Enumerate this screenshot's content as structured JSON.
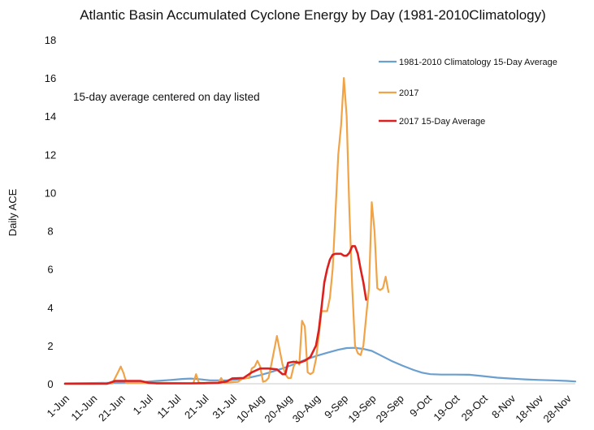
{
  "chart_data": {
    "type": "line",
    "title": "Atlantic Basin Accumulated Cyclone Energy by Day (1981-2010Climatology)",
    "annotation": "15-day average centered on day listed",
    "ylabel": "Daily ACE",
    "xlabel": "",
    "ylim": [
      0,
      18
    ],
    "yticks": [
      0,
      2,
      4,
      6,
      8,
      10,
      12,
      14,
      16,
      18
    ],
    "x_axis_start": "1-Jun",
    "x_axis_end_day": 183,
    "xticks": [
      {
        "day": 0,
        "label": "1-Jun"
      },
      {
        "day": 10,
        "label": "11-Jun"
      },
      {
        "day": 20,
        "label": "21-Jun"
      },
      {
        "day": 30,
        "label": "1-Jul"
      },
      {
        "day": 40,
        "label": "11-Jul"
      },
      {
        "day": 50,
        "label": "21-Jul"
      },
      {
        "day": 60,
        "label": "31-Jul"
      },
      {
        "day": 70,
        "label": "10-Aug"
      },
      {
        "day": 80,
        "label": "20-Aug"
      },
      {
        "day": 90,
        "label": "30-Aug"
      },
      {
        "day": 100,
        "label": "9-Sep"
      },
      {
        "day": 110,
        "label": "19-Sep"
      },
      {
        "day": 120,
        "label": "29-Sep"
      },
      {
        "day": 130,
        "label": "9-Oct"
      },
      {
        "day": 140,
        "label": "19-Oct"
      },
      {
        "day": 150,
        "label": "29-Oct"
      },
      {
        "day": 160,
        "label": "8-Nov"
      },
      {
        "day": 170,
        "label": "18-Nov"
      },
      {
        "day": 180,
        "label": "28-Nov"
      }
    ],
    "grid": false,
    "legend_position": "top-right",
    "series": [
      {
        "name": "1981-2010 Climatology 15-Day Average",
        "color": "#6a9fcf",
        "points": [
          [
            0,
            0.02
          ],
          [
            10,
            0.04
          ],
          [
            20,
            0.06
          ],
          [
            27,
            0.08
          ],
          [
            33,
            0.15
          ],
          [
            38,
            0.2
          ],
          [
            42,
            0.25
          ],
          [
            45,
            0.27
          ],
          [
            48,
            0.24
          ],
          [
            52,
            0.18
          ],
          [
            58,
            0.18
          ],
          [
            62,
            0.22
          ],
          [
            66,
            0.32
          ],
          [
            70,
            0.45
          ],
          [
            74,
            0.62
          ],
          [
            78,
            0.8
          ],
          [
            82,
            1.02
          ],
          [
            86,
            1.25
          ],
          [
            90,
            1.45
          ],
          [
            94,
            1.62
          ],
          [
            98,
            1.78
          ],
          [
            101,
            1.87
          ],
          [
            104,
            1.88
          ],
          [
            107,
            1.82
          ],
          [
            110,
            1.72
          ],
          [
            113,
            1.5
          ],
          [
            117,
            1.2
          ],
          [
            121,
            0.95
          ],
          [
            125,
            0.72
          ],
          [
            128,
            0.58
          ],
          [
            131,
            0.5
          ],
          [
            135,
            0.48
          ],
          [
            140,
            0.48
          ],
          [
            145,
            0.47
          ],
          [
            150,
            0.4
          ],
          [
            155,
            0.32
          ],
          [
            160,
            0.27
          ],
          [
            165,
            0.23
          ],
          [
            170,
            0.2
          ],
          [
            175,
            0.18
          ],
          [
            180,
            0.15
          ],
          [
            183,
            0.12
          ]
        ]
      },
      {
        "name": "2017",
        "color": "#f0a347",
        "points": [
          [
            0,
            0
          ],
          [
            10,
            0
          ],
          [
            17,
            0.02
          ],
          [
            19,
            0.6
          ],
          [
            20,
            0.9
          ],
          [
            21,
            0.55
          ],
          [
            22,
            0.05
          ],
          [
            35,
            0.05
          ],
          [
            46,
            0.02
          ],
          [
            47,
            0.5
          ],
          [
            48,
            0.05
          ],
          [
            55,
            0.05
          ],
          [
            56,
            0.3
          ],
          [
            57,
            0.05
          ],
          [
            62,
            0.1
          ],
          [
            64,
            0.3
          ],
          [
            66,
            0.3
          ],
          [
            67,
            0.8
          ],
          [
            68,
            0.9
          ],
          [
            69,
            1.2
          ],
          [
            70,
            0.9
          ],
          [
            71,
            0.1
          ],
          [
            72,
            0.15
          ],
          [
            73,
            0.3
          ],
          [
            74,
            1.0
          ],
          [
            76,
            2.5
          ],
          [
            78,
            1.0
          ],
          [
            79,
            0.5
          ],
          [
            80,
            0.3
          ],
          [
            81,
            0.3
          ],
          [
            82,
            0.9
          ],
          [
            83,
            1.2
          ],
          [
            84,
            1.0
          ],
          [
            85,
            3.3
          ],
          [
            86,
            3.0
          ],
          [
            87,
            0.6
          ],
          [
            88,
            0.5
          ],
          [
            89,
            0.6
          ],
          [
            90,
            1.3
          ],
          [
            91,
            2.5
          ],
          [
            92,
            3.8
          ],
          [
            93,
            3.8
          ],
          [
            94,
            3.8
          ],
          [
            95,
            4.5
          ],
          [
            96,
            6.0
          ],
          [
            97,
            9.0
          ],
          [
            98,
            12.0
          ],
          [
            99,
            13.5
          ],
          [
            100,
            16.0
          ],
          [
            101,
            14.0
          ],
          [
            102,
            9.0
          ],
          [
            103,
            5.0
          ],
          [
            104,
            2.0
          ],
          [
            105,
            1.6
          ],
          [
            106,
            1.5
          ],
          [
            107,
            2.0
          ],
          [
            108,
            3.5
          ],
          [
            109,
            5.0
          ],
          [
            110,
            9.5
          ],
          [
            111,
            8.0
          ],
          [
            112,
            5.0
          ],
          [
            113,
            4.9
          ],
          [
            114,
            5.0
          ],
          [
            115,
            5.6
          ],
          [
            116,
            4.8
          ]
        ]
      },
      {
        "name": "2017 15-Day Average",
        "color": "#dc1f1f",
        "points": [
          [
            0,
            0
          ],
          [
            15,
            0
          ],
          [
            18,
            0.15
          ],
          [
            27,
            0.15
          ],
          [
            30,
            0.05
          ],
          [
            33,
            0.02
          ],
          [
            45,
            0.02
          ],
          [
            50,
            0.03
          ],
          [
            55,
            0.05
          ],
          [
            58,
            0.12
          ],
          [
            60,
            0.28
          ],
          [
            64,
            0.3
          ],
          [
            67,
            0.6
          ],
          [
            70,
            0.8
          ],
          [
            73,
            0.8
          ],
          [
            76,
            0.75
          ],
          [
            78,
            0.5
          ],
          [
            79,
            0.5
          ],
          [
            80,
            1.1
          ],
          [
            82,
            1.15
          ],
          [
            84,
            1.1
          ],
          [
            86,
            1.2
          ],
          [
            88,
            1.4
          ],
          [
            90,
            2.0
          ],
          [
            91,
            2.8
          ],
          [
            92,
            4.0
          ],
          [
            93,
            5.3
          ],
          [
            94,
            6.0
          ],
          [
            95,
            6.5
          ],
          [
            96,
            6.75
          ],
          [
            97,
            6.8
          ],
          [
            98,
            6.8
          ],
          [
            99,
            6.8
          ],
          [
            100,
            6.7
          ],
          [
            101,
            6.7
          ],
          [
            102,
            6.85
          ],
          [
            103,
            7.2
          ],
          [
            104,
            7.2
          ],
          [
            105,
            6.8
          ],
          [
            106,
            6.0
          ],
          [
            107,
            5.3
          ],
          [
            108,
            4.4
          ]
        ]
      }
    ]
  }
}
